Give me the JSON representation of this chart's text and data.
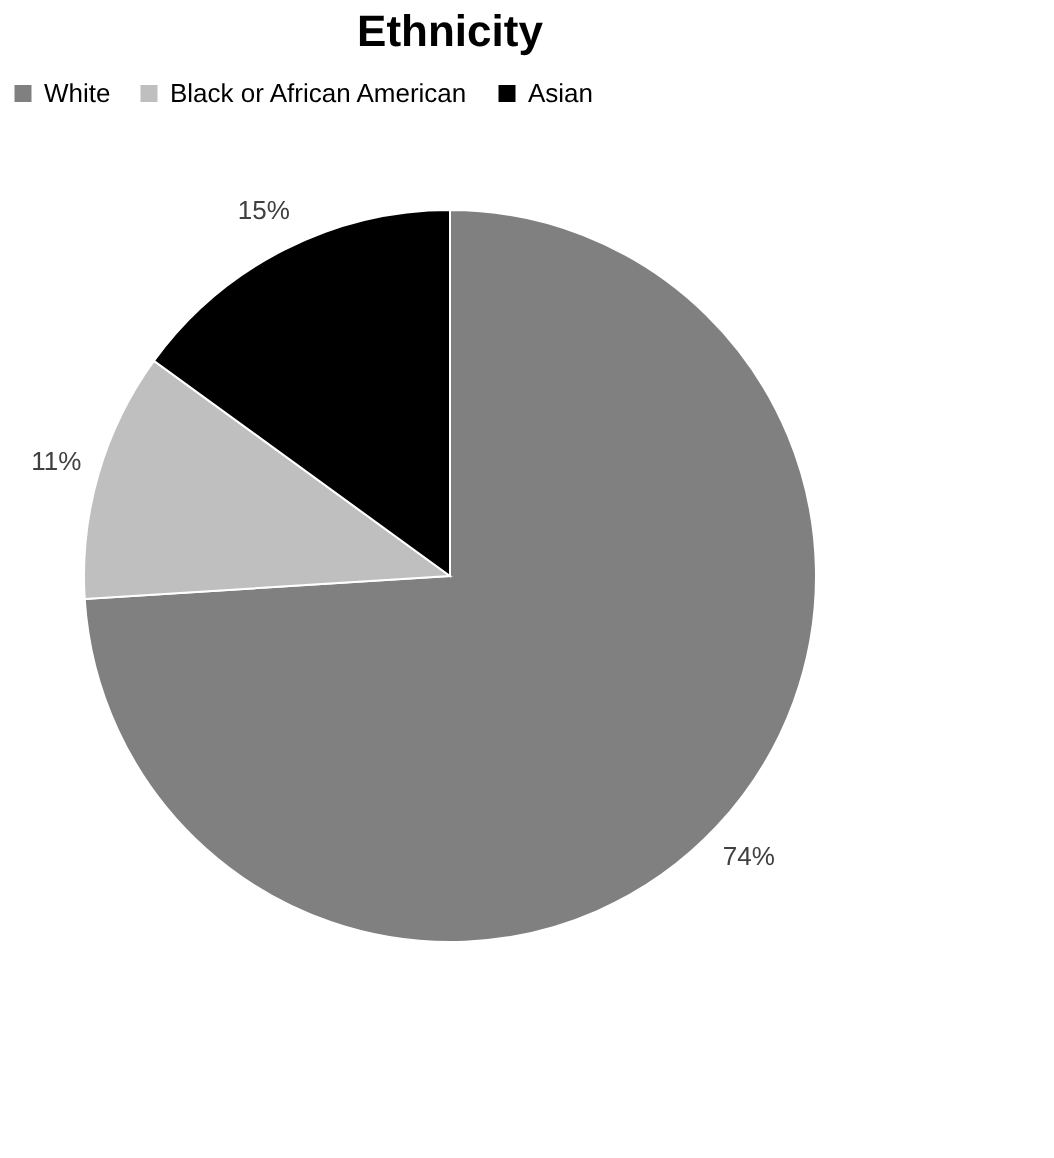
{
  "chart_data": {
    "type": "pie",
    "title": "Ethnicity",
    "categories": [
      "White",
      "Black or African American",
      "Asian"
    ],
    "values": [
      74,
      11,
      15
    ],
    "colors": [
      "#808080",
      "#bfbfbf",
      "#000000"
    ],
    "value_labels": [
      "74%",
      "11%",
      "15%"
    ],
    "legend": "top"
  }
}
